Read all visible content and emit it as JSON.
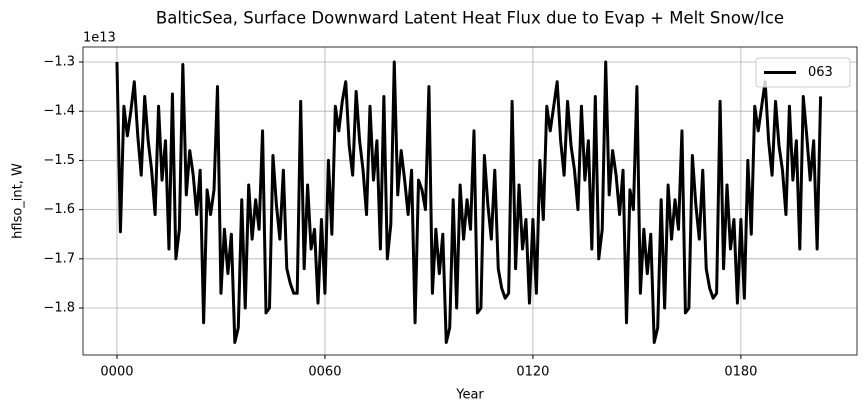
{
  "chart_data": {
    "type": "line",
    "title": "BalticSea, Surface Downward Latent Heat Flux due to Evap + Melt Snow/Ice",
    "y_offset_label": "1e13",
    "xlabel": "Year",
    "ylabel": "hflso_int, W",
    "x": [
      0,
      1,
      2,
      3,
      4,
      5,
      6,
      7,
      8,
      9,
      10,
      11,
      12,
      13,
      14,
      15,
      16,
      17,
      18,
      19,
      20,
      21,
      22,
      23,
      24,
      25,
      26,
      27,
      28,
      29,
      30,
      31,
      32,
      33,
      34,
      35,
      36,
      37,
      38,
      39,
      40,
      41,
      42,
      43,
      44,
      45,
      46,
      47,
      48,
      49,
      50,
      51,
      52,
      53,
      54,
      55,
      56,
      57,
      58,
      59,
      60,
      61,
      62,
      63,
      64,
      65,
      66,
      67,
      68,
      69,
      70,
      71,
      72,
      73,
      74,
      75,
      76,
      77,
      78,
      79,
      80,
      81,
      82,
      83,
      84,
      85,
      86,
      87,
      88,
      89,
      90,
      91,
      92,
      93,
      94,
      95,
      96,
      97,
      98,
      99,
      100,
      101,
      102,
      103,
      104,
      105,
      106,
      107,
      108,
      109,
      110,
      111,
      112,
      113,
      114,
      115,
      116,
      117,
      118,
      119,
      120,
      121,
      122,
      123,
      124,
      125,
      126,
      127,
      128,
      129,
      130,
      131,
      132,
      133,
      134,
      135,
      136,
      137,
      138,
      139,
      140,
      141,
      142,
      143,
      144,
      145,
      146,
      147,
      148,
      149,
      150,
      151,
      152,
      153,
      154,
      155,
      156,
      157,
      158,
      159,
      160,
      161,
      162,
      163,
      164,
      165,
      166,
      167,
      168,
      169,
      170,
      171,
      172,
      173,
      174,
      175,
      176,
      177,
      178,
      179,
      180,
      181,
      182,
      183,
      184,
      185,
      186,
      187,
      188,
      189,
      190,
      191,
      192,
      193,
      194,
      195,
      196,
      197,
      198,
      199,
      200,
      201,
      202,
      203
    ],
    "series": [
      {
        "name": "063",
        "color": "#000000",
        "values": [
          -1.3,
          -1.645,
          -1.39,
          -1.45,
          -1.4,
          -1.34,
          -1.45,
          -1.53,
          -1.37,
          -1.46,
          -1.52,
          -1.61,
          -1.39,
          -1.54,
          -1.46,
          -1.68,
          -1.365,
          -1.7,
          -1.64,
          -1.305,
          -1.57,
          -1.48,
          -1.53,
          -1.61,
          -1.52,
          -1.83,
          -1.56,
          -1.61,
          -1.56,
          -1.35,
          -1.77,
          -1.64,
          -1.73,
          -1.65,
          -1.87,
          -1.84,
          -1.58,
          -1.8,
          -1.55,
          -1.66,
          -1.58,
          -1.64,
          -1.44,
          -1.81,
          -1.8,
          -1.49,
          -1.59,
          -1.66,
          -1.52,
          -1.72,
          -1.75,
          -1.77,
          -1.77,
          -1.38,
          -1.72,
          -1.55,
          -1.68,
          -1.64,
          -1.79,
          -1.62,
          -1.77,
          -1.5,
          -1.65,
          -1.39,
          -1.44,
          -1.38,
          -1.34,
          -1.47,
          -1.53,
          -1.36,
          -1.46,
          -1.52,
          -1.61,
          -1.39,
          -1.54,
          -1.46,
          -1.68,
          -1.37,
          -1.7,
          -1.63,
          -1.3,
          -1.57,
          -1.48,
          -1.54,
          -1.61,
          -1.52,
          -1.83,
          -1.54,
          -1.56,
          -1.6,
          -1.35,
          -1.77,
          -1.64,
          -1.73,
          -1.65,
          -1.87,
          -1.84,
          -1.58,
          -1.8,
          -1.55,
          -1.66,
          -1.58,
          -1.64,
          -1.44,
          -1.81,
          -1.8,
          -1.49,
          -1.59,
          -1.66,
          -1.52,
          -1.72,
          -1.76,
          -1.78,
          -1.77,
          -1.38,
          -1.72,
          -1.55,
          -1.68,
          -1.62,
          -1.79,
          -1.62,
          -1.77,
          -1.5,
          -1.62,
          -1.39,
          -1.44,
          -1.39,
          -1.34,
          -1.46,
          -1.53,
          -1.38,
          -1.47,
          -1.52,
          -1.6,
          -1.39,
          -1.54,
          -1.46,
          -1.68,
          -1.37,
          -1.7,
          -1.64,
          -1.3,
          -1.57,
          -1.48,
          -1.53,
          -1.61,
          -1.52,
          -1.83,
          -1.56,
          -1.6,
          -1.35,
          -1.77,
          -1.64,
          -1.73,
          -1.65,
          -1.87,
          -1.84,
          -1.58,
          -1.8,
          -1.55,
          -1.66,
          -1.58,
          -1.64,
          -1.44,
          -1.81,
          -1.8,
          -1.49,
          -1.59,
          -1.66,
          -1.52,
          -1.72,
          -1.76,
          -1.78,
          -1.77,
          -1.38,
          -1.72,
          -1.55,
          -1.68,
          -1.62,
          -1.79,
          -1.62,
          -1.78,
          -1.5,
          -1.65,
          -1.39,
          -1.44,
          -1.39,
          -1.34,
          -1.46,
          -1.53,
          -1.38,
          -1.47,
          -1.52,
          -1.61,
          -1.39,
          -1.54,
          -1.46,
          -1.68,
          -1.37,
          -1.45,
          -1.54,
          -1.46,
          -1.68,
          -1.37
        ]
      }
    ],
    "xlim": [
      -9.8,
      213.5
    ],
    "ylim": [
      -1.8955,
      -1.2695
    ],
    "xticks": [
      {
        "value": 0,
        "label": "0000"
      },
      {
        "value": 60,
        "label": "0060"
      },
      {
        "value": 120,
        "label": "0120"
      },
      {
        "value": 180,
        "label": "0180"
      }
    ],
    "yticks": [
      {
        "value": -1.8,
        "label": "−1.8"
      },
      {
        "value": -1.7,
        "label": "−1.7"
      },
      {
        "value": -1.6,
        "label": "−1.6"
      },
      {
        "value": -1.5,
        "label": "−1.5"
      },
      {
        "value": -1.4,
        "label": "−1.4"
      },
      {
        "value": -1.3,
        "label": "−1.3"
      }
    ],
    "grid": true,
    "legend": "upper right"
  }
}
